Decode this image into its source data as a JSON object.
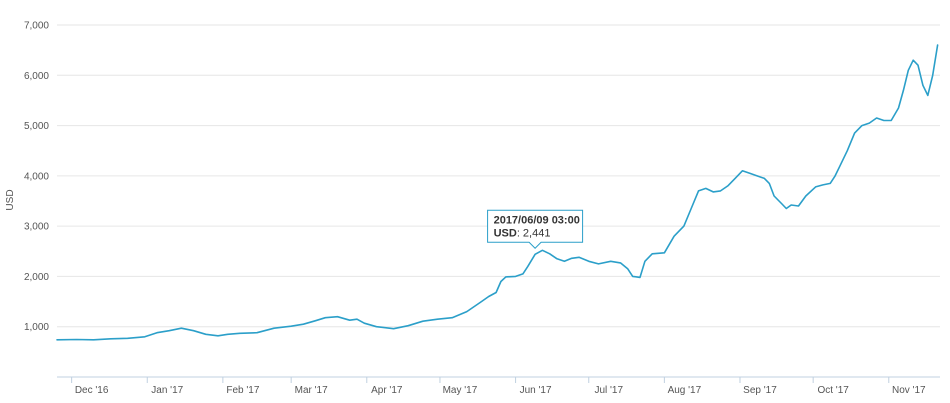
{
  "chart_data": {
    "type": "line",
    "ylabel": "USD",
    "ylim": [
      0,
      7000
    ],
    "y_ticks": [
      "7,000",
      "6,000",
      "5,000",
      "4,000",
      "3,000",
      "2,000",
      "1,000"
    ],
    "y_tick_values": [
      7000,
      6000,
      5000,
      4000,
      3000,
      2000,
      1000
    ],
    "x_ticks": [
      "Dec '16",
      "Jan '17",
      "Feb '17",
      "Mar '17",
      "Apr '17",
      "May '17",
      "Jun '17",
      "Jul '17",
      "Aug '17",
      "Sep '17",
      "Oct '17",
      "Nov '17"
    ],
    "x_tick_dates": [
      "2016-12-01",
      "2017-01-01",
      "2017-02-01",
      "2017-03-01",
      "2017-04-01",
      "2017-05-01",
      "2017-06-01",
      "2017-07-01",
      "2017-08-01",
      "2017-09-01",
      "2017-10-01",
      "2017-11-01"
    ],
    "xlim": [
      "2016-11-25",
      "2017-11-22"
    ],
    "grid": "horizontal",
    "line_color": "#2b9fc9",
    "series": [
      {
        "points": [
          [
            "2016-11-25",
            740
          ],
          [
            "2016-12-03",
            745
          ],
          [
            "2016-12-10",
            740
          ],
          [
            "2016-12-17",
            760
          ],
          [
            "2016-12-24",
            770
          ],
          [
            "2016-12-31",
            800
          ],
          [
            "2017-01-05",
            880
          ],
          [
            "2017-01-10",
            920
          ],
          [
            "2017-01-15",
            970
          ],
          [
            "2017-01-20",
            920
          ],
          [
            "2017-01-25",
            850
          ],
          [
            "2017-01-30",
            820
          ],
          [
            "2017-02-03",
            850
          ],
          [
            "2017-02-08",
            870
          ],
          [
            "2017-02-15",
            880
          ],
          [
            "2017-02-22",
            970
          ],
          [
            "2017-03-01",
            1010
          ],
          [
            "2017-03-06",
            1050
          ],
          [
            "2017-03-11",
            1120
          ],
          [
            "2017-03-15",
            1180
          ],
          [
            "2017-03-20",
            1200
          ],
          [
            "2017-03-25",
            1130
          ],
          [
            "2017-03-28",
            1150
          ],
          [
            "2017-03-31",
            1070
          ],
          [
            "2017-04-05",
            1000
          ],
          [
            "2017-04-12",
            960
          ],
          [
            "2017-04-18",
            1020
          ],
          [
            "2017-04-24",
            1110
          ],
          [
            "2017-04-30",
            1150
          ],
          [
            "2017-05-06",
            1180
          ],
          [
            "2017-05-12",
            1300
          ],
          [
            "2017-05-18",
            1500
          ],
          [
            "2017-05-21",
            1600
          ],
          [
            "2017-05-24",
            1680
          ],
          [
            "2017-05-26",
            1900
          ],
          [
            "2017-05-28",
            1990
          ],
          [
            "2017-06-01",
            2000
          ],
          [
            "2017-06-04",
            2050
          ],
          [
            "2017-06-06",
            2200
          ],
          [
            "2017-06-09",
            2441
          ],
          [
            "2017-06-12",
            2520
          ],
          [
            "2017-06-15",
            2450
          ],
          [
            "2017-06-18",
            2350
          ],
          [
            "2017-06-21",
            2300
          ],
          [
            "2017-06-24",
            2360
          ],
          [
            "2017-06-27",
            2380
          ],
          [
            "2017-07-01",
            2300
          ],
          [
            "2017-07-05",
            2250
          ],
          [
            "2017-07-10",
            2300
          ],
          [
            "2017-07-14",
            2270
          ],
          [
            "2017-07-17",
            2150
          ],
          [
            "2017-07-19",
            2000
          ],
          [
            "2017-07-22",
            1980
          ],
          [
            "2017-07-24",
            2300
          ],
          [
            "2017-07-27",
            2450
          ],
          [
            "2017-08-01",
            2470
          ],
          [
            "2017-08-05",
            2800
          ],
          [
            "2017-08-09",
            3000
          ],
          [
            "2017-08-12",
            3350
          ],
          [
            "2017-08-15",
            3700
          ],
          [
            "2017-08-18",
            3750
          ],
          [
            "2017-08-21",
            3680
          ],
          [
            "2017-08-24",
            3700
          ],
          [
            "2017-08-27",
            3800
          ],
          [
            "2017-08-30",
            3950
          ],
          [
            "2017-09-02",
            4100
          ],
          [
            "2017-09-05",
            4050
          ],
          [
            "2017-09-08",
            4000
          ],
          [
            "2017-09-11",
            3950
          ],
          [
            "2017-09-13",
            3850
          ],
          [
            "2017-09-15",
            3600
          ],
          [
            "2017-09-18",
            3450
          ],
          [
            "2017-09-20",
            3350
          ],
          [
            "2017-09-22",
            3420
          ],
          [
            "2017-09-25",
            3400
          ],
          [
            "2017-09-28",
            3600
          ],
          [
            "2017-10-02",
            3780
          ],
          [
            "2017-10-05",
            3820
          ],
          [
            "2017-10-08",
            3850
          ],
          [
            "2017-10-10",
            4000
          ],
          [
            "2017-10-12",
            4200
          ],
          [
            "2017-10-15",
            4500
          ],
          [
            "2017-10-18",
            4850
          ],
          [
            "2017-10-21",
            5000
          ],
          [
            "2017-10-24",
            5050
          ],
          [
            "2017-10-27",
            5150
          ],
          [
            "2017-10-30",
            5100
          ],
          [
            "2017-11-02",
            5100
          ],
          [
            "2017-11-05",
            5350
          ],
          [
            "2017-11-07",
            5700
          ],
          [
            "2017-11-09",
            6100
          ],
          [
            "2017-11-11",
            6300
          ],
          [
            "2017-11-13",
            6200
          ],
          [
            "2017-11-15",
            5800
          ],
          [
            "2017-11-17",
            5600
          ],
          [
            "2017-11-19",
            6000
          ],
          [
            "2017-11-21",
            6600
          ]
        ]
      }
    ],
    "tooltip": {
      "title": "2017/06/09 03:00",
      "key": "USD",
      "value": "2,441",
      "date": "2017-06-09",
      "y": 2441
    }
  }
}
